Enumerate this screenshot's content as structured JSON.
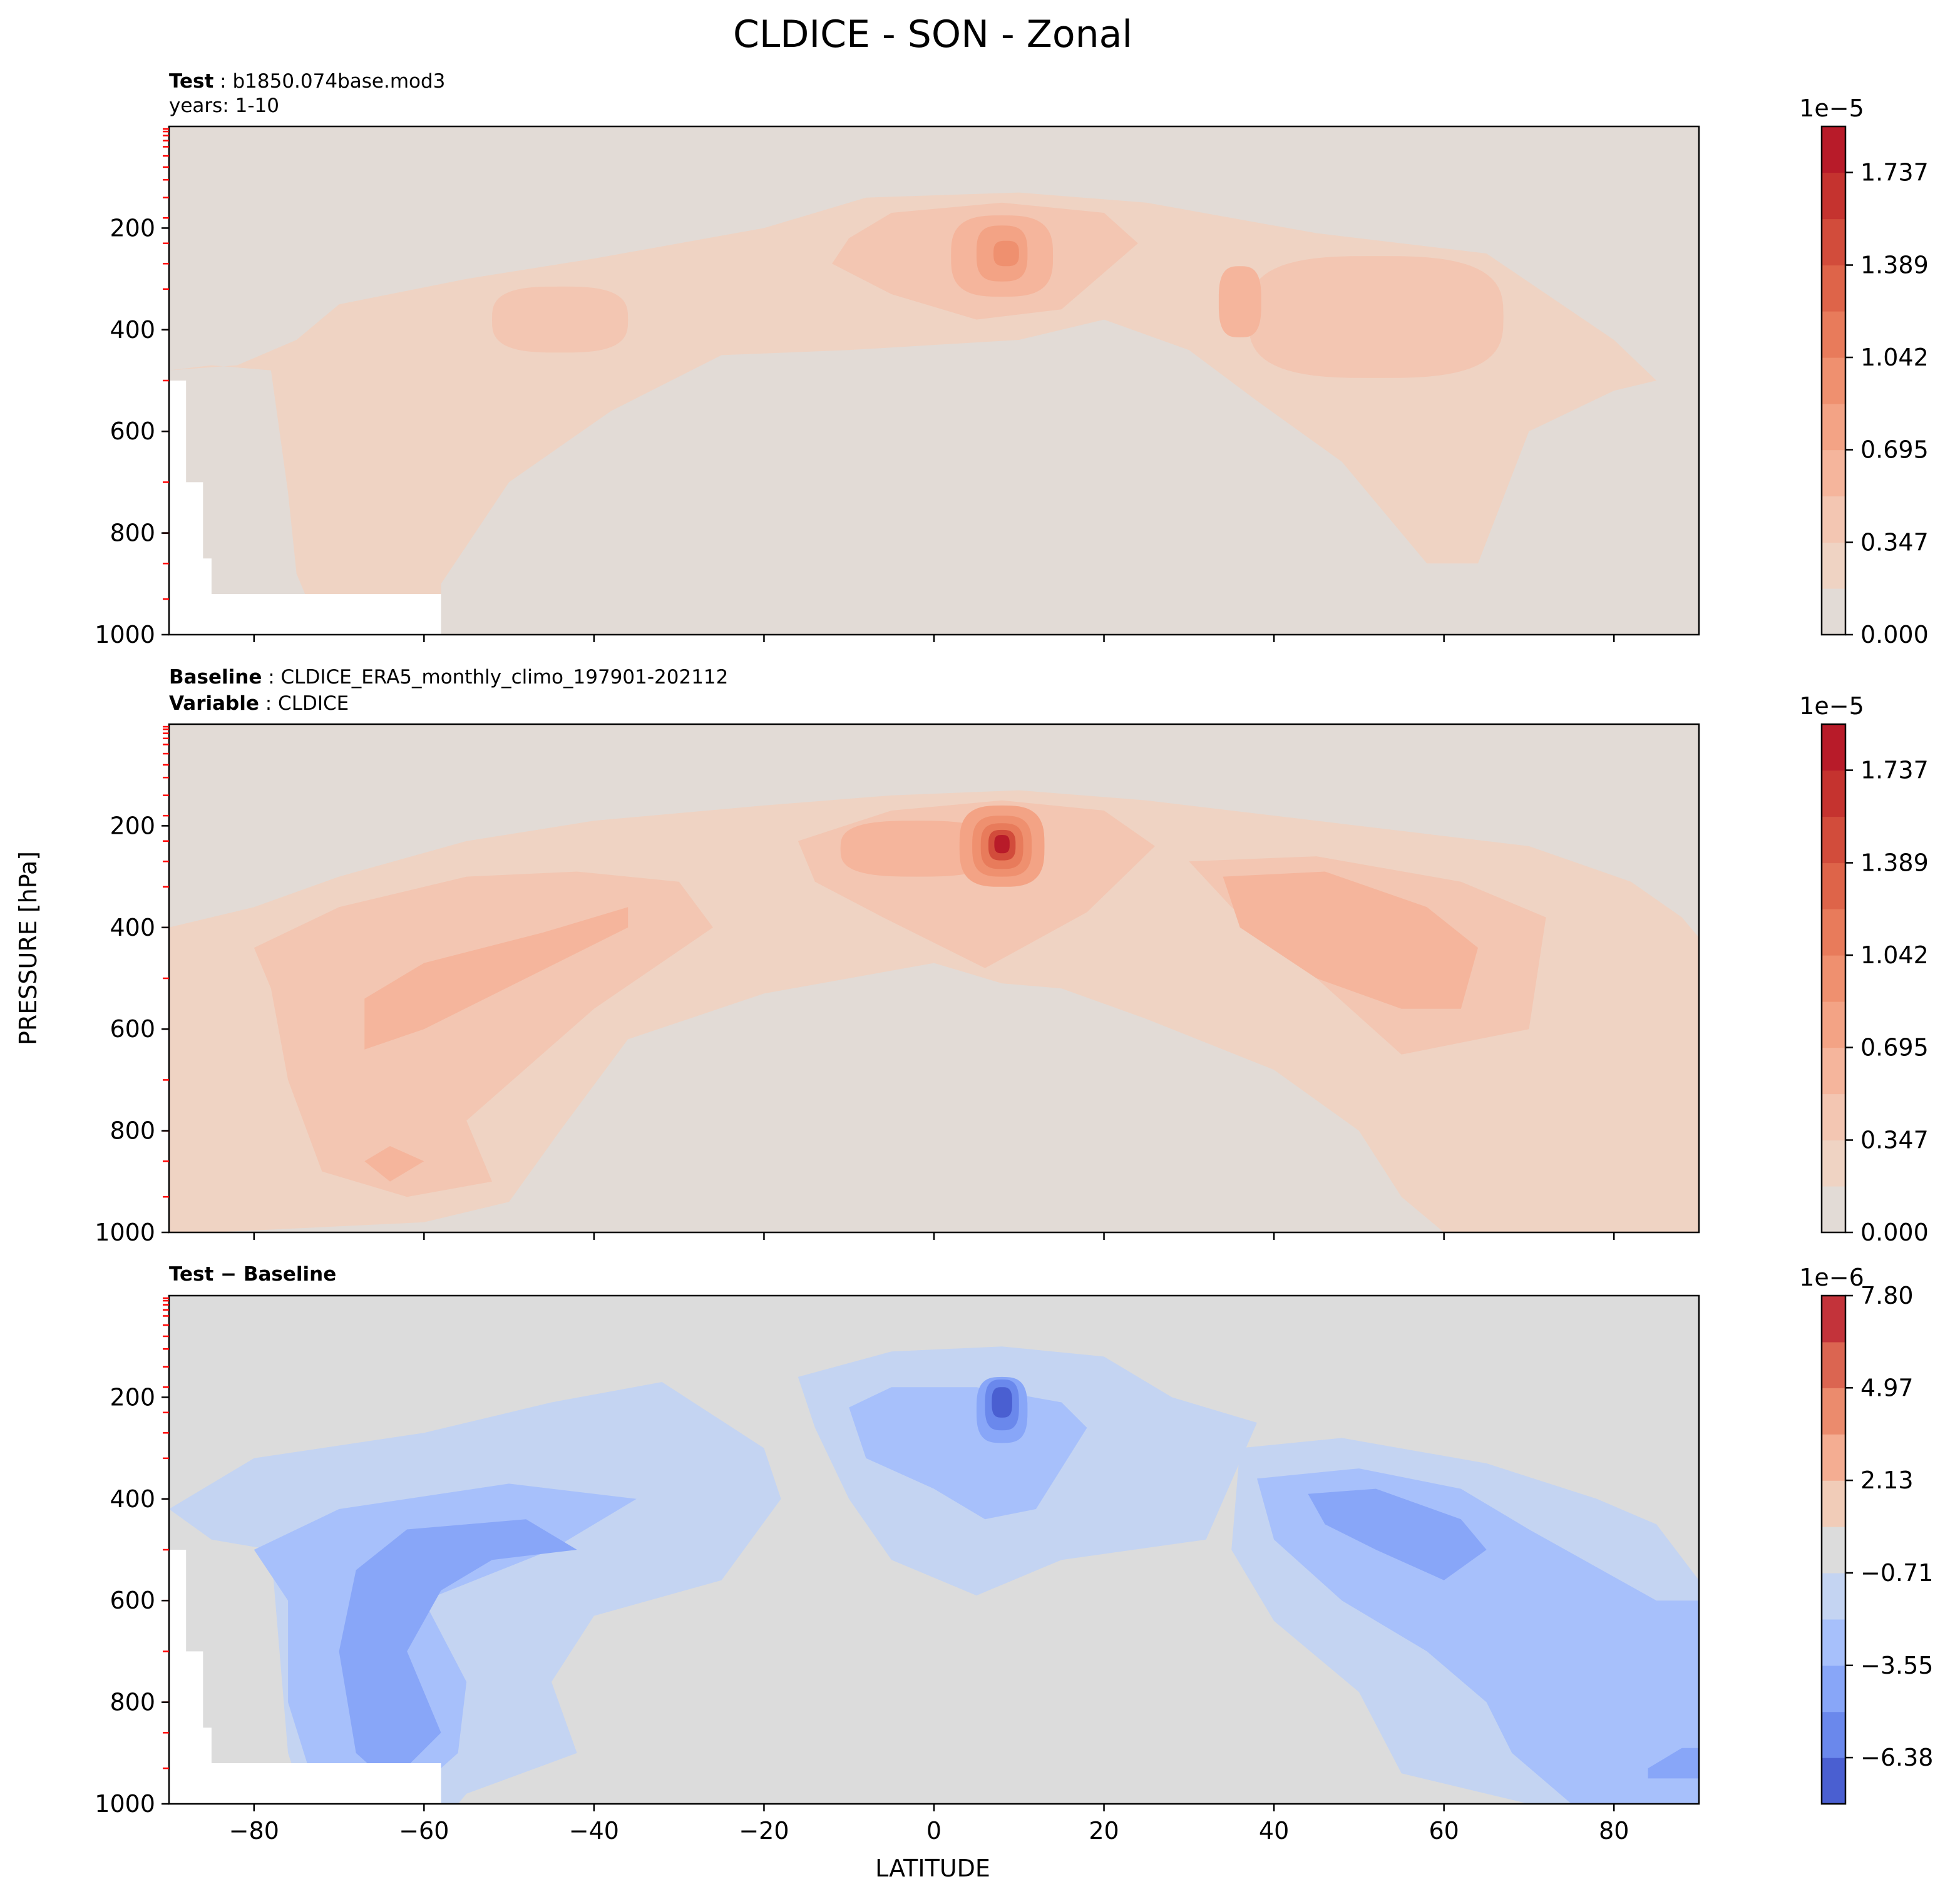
{
  "chart_data": {
    "type": "heatmap",
    "title": "CLDICE - SON - Zonal",
    "xlabel": "LATITUDE",
    "ylabel": "PRESSURE [hPa]",
    "x_ticks": [
      "−80",
      "−60",
      "−40",
      "−20",
      "0",
      "20",
      "40",
      "60",
      "80"
    ],
    "x_tick_values": [
      -80,
      -60,
      -40,
      -20,
      0,
      20,
      40,
      60,
      80
    ],
    "xlim": [
      -90,
      90
    ],
    "y_ticks": [
      "200",
      "400",
      "600",
      "800",
      "1000"
    ],
    "y_tick_values": [
      200,
      400,
      600,
      800,
      1000
    ],
    "ylim": [
      1000,
      0
    ],
    "panels": [
      {
        "name": "test",
        "label_bold": "Test",
        "label_text": "b1850.074base.mod3",
        "label2_text": "years: 1-10",
        "colorbar_exponent": "1e−5",
        "colorbar_ticks": [
          "0.000",
          "0.347",
          "0.695",
          "1.042",
          "1.389",
          "1.737"
        ],
        "colorbar_levels": [
          0.0,
          0.174,
          0.347,
          0.521,
          0.695,
          0.868,
          1.042,
          1.216,
          1.389,
          1.563,
          1.737,
          1.91
        ],
        "colors": [
          "#e2dbd6",
          "#efd3c3",
          "#f3c6b2",
          "#f5b59c",
          "#f3a385",
          "#ef906f",
          "#e87b5b",
          "#de6449",
          "#d24c3b",
          "#c5332f",
          "#b81b29"
        ],
        "max_value": 1.32,
        "max_location": {
          "lat": 8,
          "pressure_hPa": 250
        }
      },
      {
        "name": "baseline",
        "label_bold": "Baseline",
        "label_text": "CLDICE_ERA5_monthly_climo_197901-202112",
        "label2_bold": "Variable",
        "label2_text": "CLDICE",
        "colorbar_exponent": "1e−5",
        "colorbar_ticks": [
          "0.000",
          "0.347",
          "0.695",
          "1.042",
          "1.389",
          "1.737"
        ],
        "colorbar_levels": [
          0.0,
          0.174,
          0.347,
          0.521,
          0.695,
          0.868,
          1.042,
          1.216,
          1.389,
          1.563,
          1.737,
          1.91
        ],
        "colors": [
          "#e2dbd6",
          "#efd3c3",
          "#f3c6b2",
          "#f5b59c",
          "#f3a385",
          "#ef906f",
          "#e87b5b",
          "#de6449",
          "#d24c3b",
          "#c5332f",
          "#b81b29"
        ],
        "max_value": 1.9,
        "max_location": {
          "lat": 8,
          "pressure_hPa": 240
        }
      },
      {
        "name": "difference",
        "label_bold": "Test − Baseline",
        "colorbar_exponent": "1e−6",
        "colorbar_ticks": [
          "7.80",
          "4.97",
          "2.13",
          "−0.71",
          "−3.55",
          "−6.38"
        ],
        "colorbar_tick_values": [
          7.8,
          4.97,
          2.13,
          -0.71,
          -3.55,
          -6.38
        ],
        "colorbar_levels": [
          -7.8,
          -6.38,
          -4.97,
          -3.55,
          -2.13,
          -0.71,
          0.71,
          2.13,
          3.55,
          4.97,
          6.38,
          7.8
        ],
        "colors": [
          "#4a5fd1",
          "#6a88ec",
          "#88a6f8",
          "#a7c0fb",
          "#c4d4f2",
          "#dcdcdc",
          "#f1ccb8",
          "#f4ad92",
          "#eb8b6d",
          "#db6551",
          "#c3333a"
        ],
        "min_value": -7.2,
        "min_location": {
          "lat": 8,
          "pressure_hPa": 230
        }
      }
    ]
  }
}
